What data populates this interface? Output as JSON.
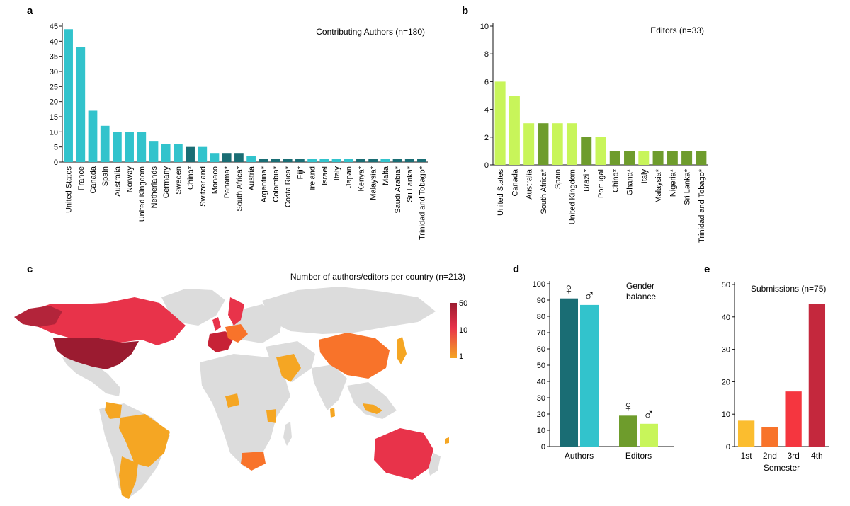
{
  "panels": {
    "a": {
      "letter": "a"
    },
    "b": {
      "letter": "b"
    },
    "c": {
      "letter": "c",
      "title": "Number of authors/editors per country (n=213)",
      "legend_ticks": [
        "50",
        "10",
        "1"
      ]
    },
    "d": {
      "letter": "d"
    },
    "e": {
      "letter": "e"
    }
  },
  "colors": {
    "authors_light": "#32c3cc",
    "authors_dark": "#1a6d74",
    "editors_light": "#c8f55a",
    "editors_dark": "#6e9c2c",
    "map_land": "#dcdcdc",
    "map_high": "#9b1b30",
    "map_mid": "#e8334a",
    "map_low": "#f5a623"
  },
  "chart_data": [
    {
      "id": "a",
      "type": "bar",
      "title": "Contributing Authors (n=180)",
      "categories": [
        "United States",
        "France",
        "Canada",
        "Spain",
        "Australia",
        "Norway",
        "United Kingdom",
        "Netherlands",
        "Germany",
        "Sweden",
        "China*",
        "Switzerland",
        "Monaco",
        "Panama*",
        "South Africa*",
        "Austria",
        "Argentina*",
        "Colombia*",
        "Costa Rica*",
        "Fiji*",
        "Ireland",
        "Israel",
        "Italy",
        "Japan",
        "Kenya*",
        "Malaysia*",
        "Malta",
        "Saudi Arabia*",
        "Sri Lanka*",
        "Trinidad and Tobago*"
      ],
      "values": [
        44,
        38,
        17,
        12,
        10,
        10,
        10,
        7,
        6,
        6,
        5,
        5,
        3,
        3,
        3,
        2,
        1,
        1,
        1,
        1,
        1,
        1,
        1,
        1,
        1,
        1,
        1,
        1,
        1,
        1
      ],
      "highlight": [
        false,
        false,
        false,
        false,
        false,
        false,
        false,
        false,
        false,
        false,
        true,
        false,
        false,
        true,
        true,
        false,
        true,
        true,
        true,
        true,
        false,
        false,
        false,
        false,
        true,
        true,
        false,
        true,
        true,
        true
      ],
      "ylim": [
        0,
        45
      ],
      "yticks": [
        0,
        5,
        10,
        15,
        20,
        25,
        30,
        35,
        40,
        45
      ]
    },
    {
      "id": "b",
      "type": "bar",
      "title": "Editors (n=33)",
      "categories": [
        "United States",
        "Canada",
        "Australia",
        "South Africa*",
        "Spain",
        "United Kingdom",
        "Brazil*",
        "Portugal",
        "China*",
        "Ghana*",
        "Italy",
        "Malaysia*",
        "Nigeria*",
        "Sri Lanka*",
        "Trinidad and Tobago*"
      ],
      "values": [
        6,
        5,
        3,
        3,
        3,
        3,
        2,
        2,
        1,
        1,
        1,
        1,
        1,
        1,
        1
      ],
      "highlight": [
        false,
        false,
        false,
        true,
        false,
        false,
        true,
        false,
        true,
        true,
        false,
        true,
        true,
        true,
        true
      ],
      "ylim": [
        0,
        10
      ],
      "yticks": [
        0,
        2,
        4,
        6,
        8,
        10
      ]
    },
    {
      "id": "d",
      "type": "bar",
      "title": "Gender balance",
      "categories": [
        "Authors",
        "Editors"
      ],
      "series": [
        {
          "values": [
            91,
            19
          ],
          "symbol": "♀"
        },
        {
          "values": [
            87,
            14
          ],
          "symbol": "♂"
        }
      ],
      "ylim": [
        0,
        100
      ],
      "yticks": [
        0,
        10,
        20,
        30,
        40,
        50,
        60,
        70,
        80,
        90,
        100
      ]
    },
    {
      "id": "e",
      "type": "bar",
      "title": "Submissions (n=75)",
      "xlabel": "Semester",
      "categories": [
        "1st",
        "2nd",
        "3rd",
        "4th"
      ],
      "values": [
        8,
        6,
        17,
        44
      ],
      "colors": [
        "#fbbd2f",
        "#f8732a",
        "#f5363f",
        "#c4283d"
      ],
      "ylim": [
        0,
        50
      ],
      "yticks": [
        0,
        10,
        20,
        30,
        40,
        50
      ]
    }
  ]
}
